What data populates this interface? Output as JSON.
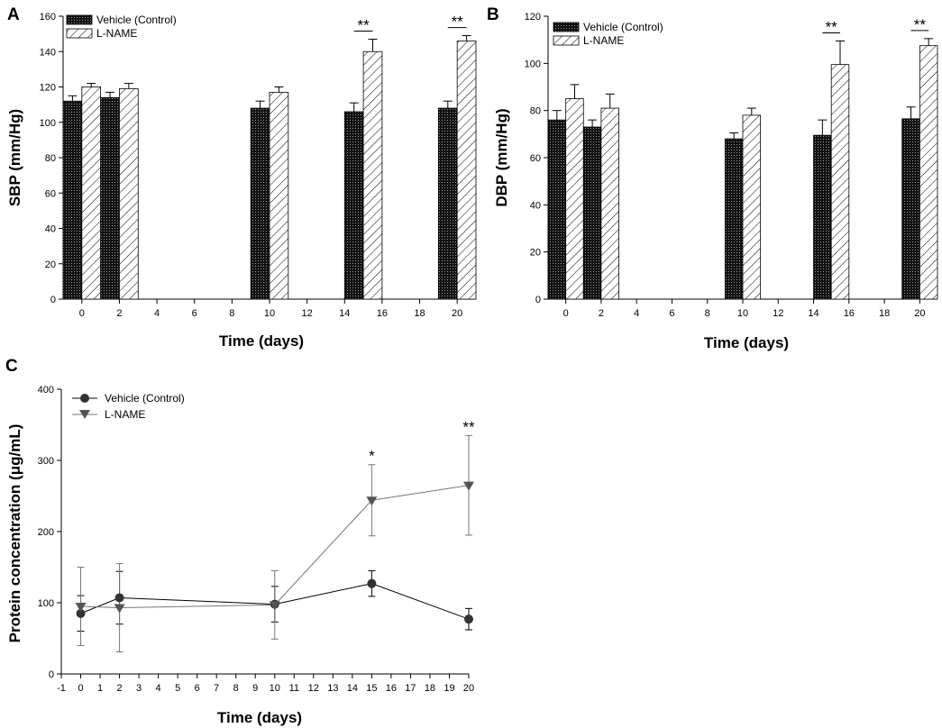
{
  "colors": {
    "control": "#1a1a1a",
    "lname": "#ffffff",
    "line_gray": "#555555"
  },
  "chart_data": [
    {
      "panel": "A",
      "type": "bar",
      "xlabel": "Time (days)",
      "ylabel": "SBP (mm/Hg)",
      "ylim": [
        0,
        160
      ],
      "yticks": [
        "0",
        "20",
        "40",
        "60",
        "80",
        "100",
        "120",
        "140",
        "160"
      ],
      "xlim": [
        -1,
        21
      ],
      "xticks": [
        "0",
        "2",
        "4",
        "6",
        "8",
        "10",
        "12",
        "14",
        "16",
        "18",
        "20"
      ],
      "legend": [
        "Vehicle (Control)",
        "L-NAME"
      ],
      "legend_position": "top-left",
      "days": [
        0,
        2,
        10,
        15,
        20
      ],
      "series": [
        {
          "name": "Vehicle (Control)",
          "values": [
            112,
            114,
            108,
            106,
            108
          ],
          "errors": [
            3,
            3,
            4,
            5,
            4
          ]
        },
        {
          "name": "L-NAME",
          "values": [
            120,
            119,
            117,
            140,
            146
          ],
          "errors": [
            2,
            3,
            3,
            7,
            3
          ]
        }
      ],
      "significance": [
        {
          "day": 15,
          "label": "**"
        },
        {
          "day": 20,
          "label": "**"
        }
      ]
    },
    {
      "panel": "B",
      "type": "bar",
      "xlabel": "Time (days)",
      "ylabel": "DBP (mm/Hg)",
      "ylim": [
        0,
        120
      ],
      "yticks": [
        "0",
        "20",
        "40",
        "60",
        "80",
        "100",
        "120"
      ],
      "xlim": [
        -1,
        21
      ],
      "xticks": [
        "0",
        "2",
        "4",
        "6",
        "8",
        "10",
        "12",
        "14",
        "16",
        "18",
        "20"
      ],
      "legend": [
        "Vehicle (Control)",
        "L-NAME"
      ],
      "legend_position": "top-left",
      "days": [
        0,
        2,
        10,
        15,
        20
      ],
      "series": [
        {
          "name": "Vehicle (Control)",
          "values": [
            76,
            73,
            68,
            69.5,
            76.5
          ],
          "errors": [
            4,
            3,
            2.5,
            6.5,
            5
          ]
        },
        {
          "name": "L-NAME",
          "values": [
            85,
            81,
            78,
            99.5,
            107.5
          ],
          "errors": [
            6,
            6,
            3,
            10,
            3
          ]
        }
      ],
      "significance": [
        {
          "day": 15,
          "label": "**"
        },
        {
          "day": 20,
          "label": "**"
        }
      ]
    },
    {
      "panel": "C",
      "type": "line",
      "xlabel": "Time (days)",
      "ylabel": "Protein concentration (μg/mL)",
      "ylim": [
        0,
        400
      ],
      "yticks": [
        "0",
        "100",
        "200",
        "300",
        "400"
      ],
      "xlim": [
        -1,
        20
      ],
      "xticks": [
        "-1",
        "0",
        "1",
        "2",
        "3",
        "4",
        "5",
        "6",
        "7",
        "8",
        "9",
        "10",
        "11",
        "12",
        "13",
        "14",
        "15",
        "16",
        "17",
        "18",
        "19",
        "20"
      ],
      "legend": [
        "Vehicle (Control)",
        "L-NAME"
      ],
      "legend_position": "top-left",
      "series": [
        {
          "name": "Vehicle (Control)",
          "marker": "circle",
          "x": [
            0,
            2,
            10,
            15,
            20
          ],
          "values": [
            85,
            107,
            98,
            127,
            77
          ],
          "errors": [
            25,
            37,
            25,
            18,
            15
          ]
        },
        {
          "name": "L-NAME",
          "marker": "triangle-down",
          "x": [
            0,
            2,
            10,
            15,
            20
          ],
          "values": [
            95,
            93,
            97,
            244,
            265
          ],
          "errors": [
            55,
            62,
            48,
            50,
            70
          ]
        }
      ],
      "significance": [
        {
          "day": 15,
          "label": "*"
        },
        {
          "day": 20,
          "label": "**"
        }
      ]
    }
  ]
}
